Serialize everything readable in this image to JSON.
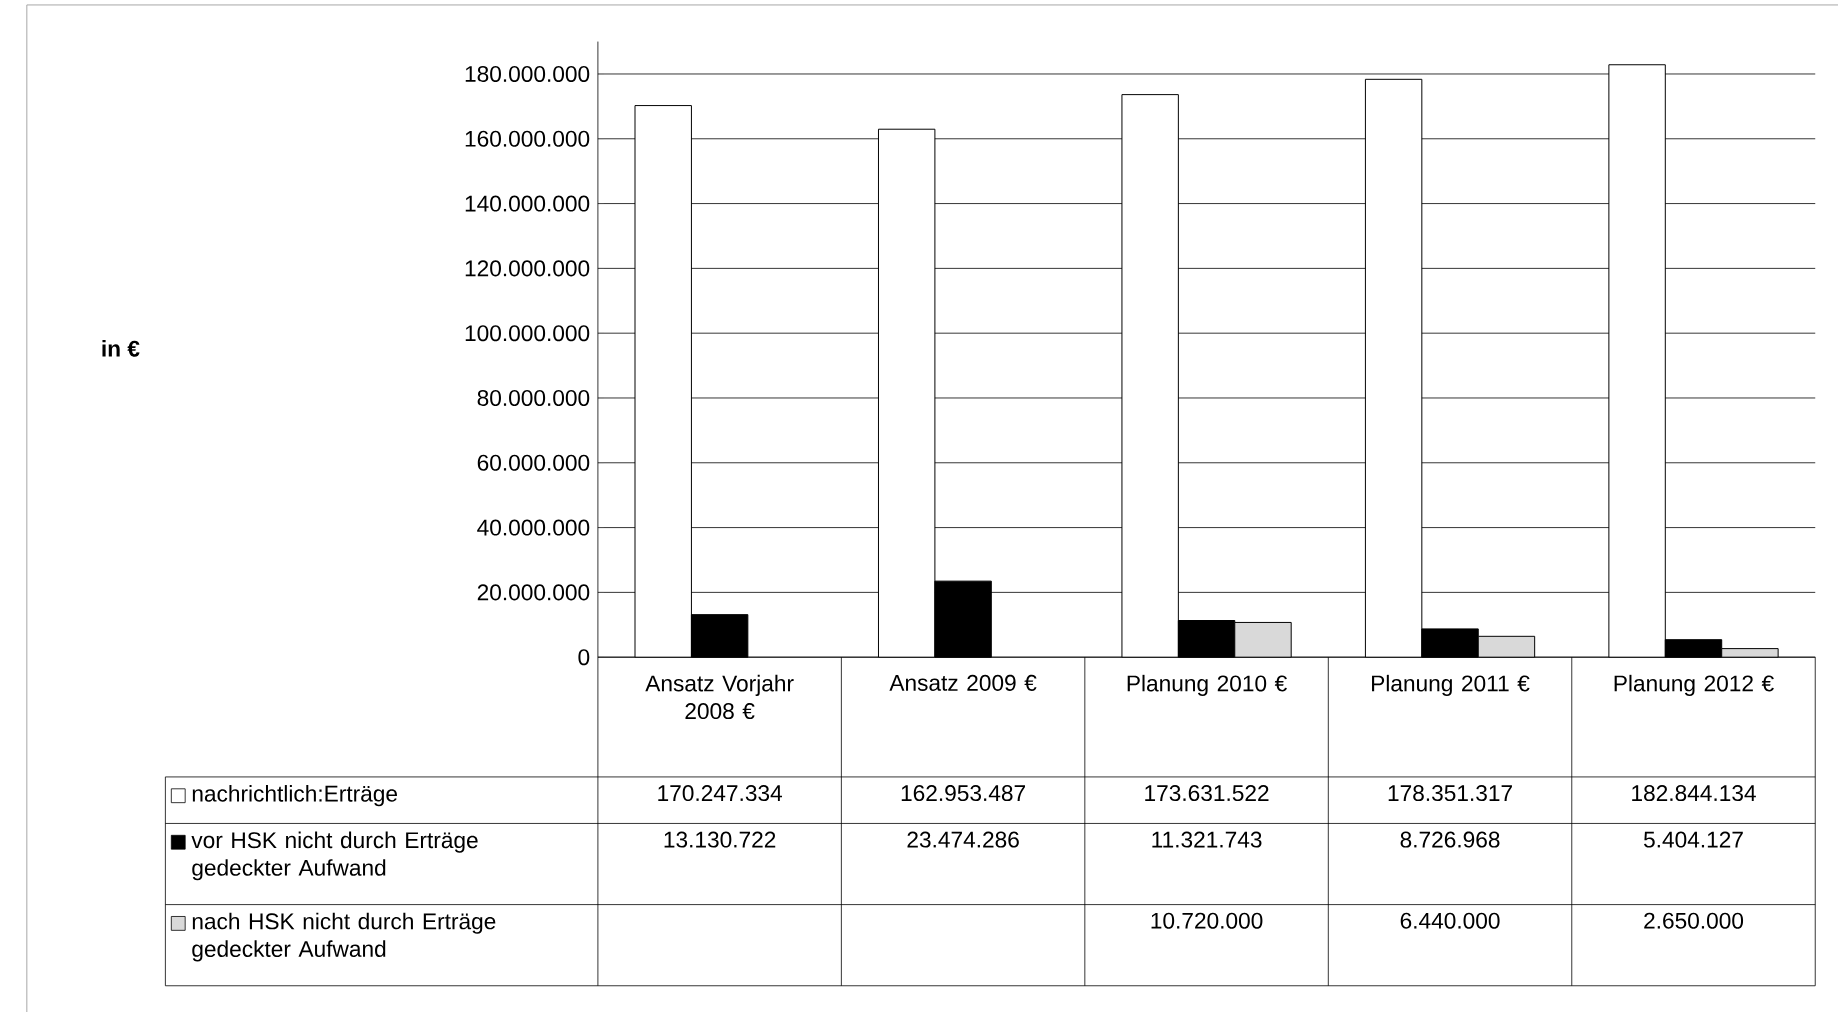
{
  "chart_data": {
    "type": "bar",
    "annotations": [
      "in €"
    ],
    "categories": [
      "Ansatz Vorjahr 2008 €",
      "Ansatz 2009 €",
      "Planung 2010 €",
      "Planung 2011 €",
      "Planung 2012 €"
    ],
    "series": [
      {
        "name": "nachrichtlich:Erträge",
        "color": "#ffffff",
        "values": [
          170247334,
          162953487,
          173631522,
          178351317,
          182844134
        ],
        "value_labels": [
          "170.247.334",
          "162.953.487",
          "173.631.522",
          "178.351.317",
          "182.844.134"
        ]
      },
      {
        "name": "vor HSK nicht durch Erträge gedeckter Aufwand",
        "color": "#000000",
        "values": [
          13130722,
          23474286,
          11321743,
          8726968,
          5404127
        ],
        "value_labels": [
          "13.130.722",
          "23.474.286",
          "11.321.743",
          "8.726.968",
          "5.404.127"
        ]
      },
      {
        "name": "nach HSK nicht durch Erträge gedeckter Aufwand",
        "color": "#d9d9d9",
        "values": [
          null,
          null,
          10720000,
          6440000,
          2650000
        ],
        "value_labels": [
          null,
          null,
          "10.720.000",
          "6.440.000",
          "2.650.000"
        ]
      }
    ],
    "ylim": [
      0,
      190000000
    ],
    "yticks": [
      {
        "value": 0,
        "label": "0"
      },
      {
        "value": 20000000,
        "label": "20.000.000"
      },
      {
        "value": 40000000,
        "label": "40.000.000"
      },
      {
        "value": 60000000,
        "label": "60.000.000"
      },
      {
        "value": 80000000,
        "label": "80.000.000"
      },
      {
        "value": 100000000,
        "label": "100.000.000"
      },
      {
        "value": 120000000,
        "label": "120.000.000"
      },
      {
        "value": 140000000,
        "label": "140.000.000"
      },
      {
        "value": 160000000,
        "label": "160.000.000"
      },
      {
        "value": 180000000,
        "label": "180.000.000"
      }
    ],
    "grid": "y",
    "legend": "bottom"
  }
}
